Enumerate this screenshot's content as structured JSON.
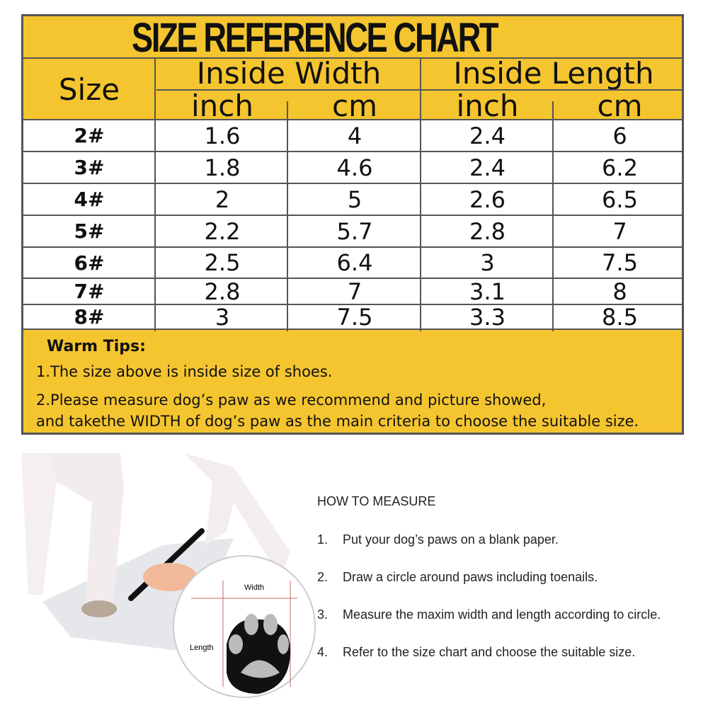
{
  "title": "SIZE REFERENCE CHART",
  "headers": {
    "size": "Size",
    "width": "Inside Width",
    "length": "Inside Length",
    "inch": "inch",
    "cm": "cm"
  },
  "rows": [
    {
      "size": "2#",
      "w_in": "1.6",
      "w_cm": "4",
      "l_in": "2.4",
      "l_cm": "6"
    },
    {
      "size": "3#",
      "w_in": "1.8",
      "w_cm": "4.6",
      "l_in": "2.4",
      "l_cm": "6.2"
    },
    {
      "size": "4#",
      "w_in": "2",
      "w_cm": "5",
      "l_in": "2.6",
      "l_cm": "6.5"
    },
    {
      "size": "5#",
      "w_in": "2.2",
      "w_cm": "5.7",
      "l_in": "2.8",
      "l_cm": "7"
    },
    {
      "size": "6#",
      "w_in": "2.5",
      "w_cm": "6.4",
      "l_in": "3",
      "l_cm": "7.5"
    },
    {
      "size": "7#",
      "w_in": "2.8",
      "w_cm": "7",
      "l_in": "3.1",
      "l_cm": "8"
    },
    {
      "size": "8#",
      "w_in": "3",
      "w_cm": "7.5",
      "l_in": "3.3",
      "l_cm": "8.5"
    }
  ],
  "tips": {
    "heading": "Warm Tips:",
    "lines": [
      "1.The size above is inside size of shoes.",
      "2.Please measure dog’s paw as we recommend and picture showed,",
      "and takethe WIDTH of dog’s paw as the main criteria to choose the suitable size."
    ]
  },
  "illustration": {
    "width_label": "Width",
    "length_label": "Length"
  },
  "how_to": {
    "heading": "HOW TO MEASURE",
    "steps": [
      {
        "num": "1.",
        "text": "Put your dog’s paws on a blank paper."
      },
      {
        "num": "2.",
        "text": "Draw a circle around paws including toenails."
      },
      {
        "num": "3.",
        "text": "Measure the maxim width and length according to circle."
      },
      {
        "num": "4.",
        "text": "Refer to the size chart and choose the suitable size."
      }
    ]
  },
  "colors": {
    "yellow": "#f5c52f",
    "border": "#555555"
  }
}
